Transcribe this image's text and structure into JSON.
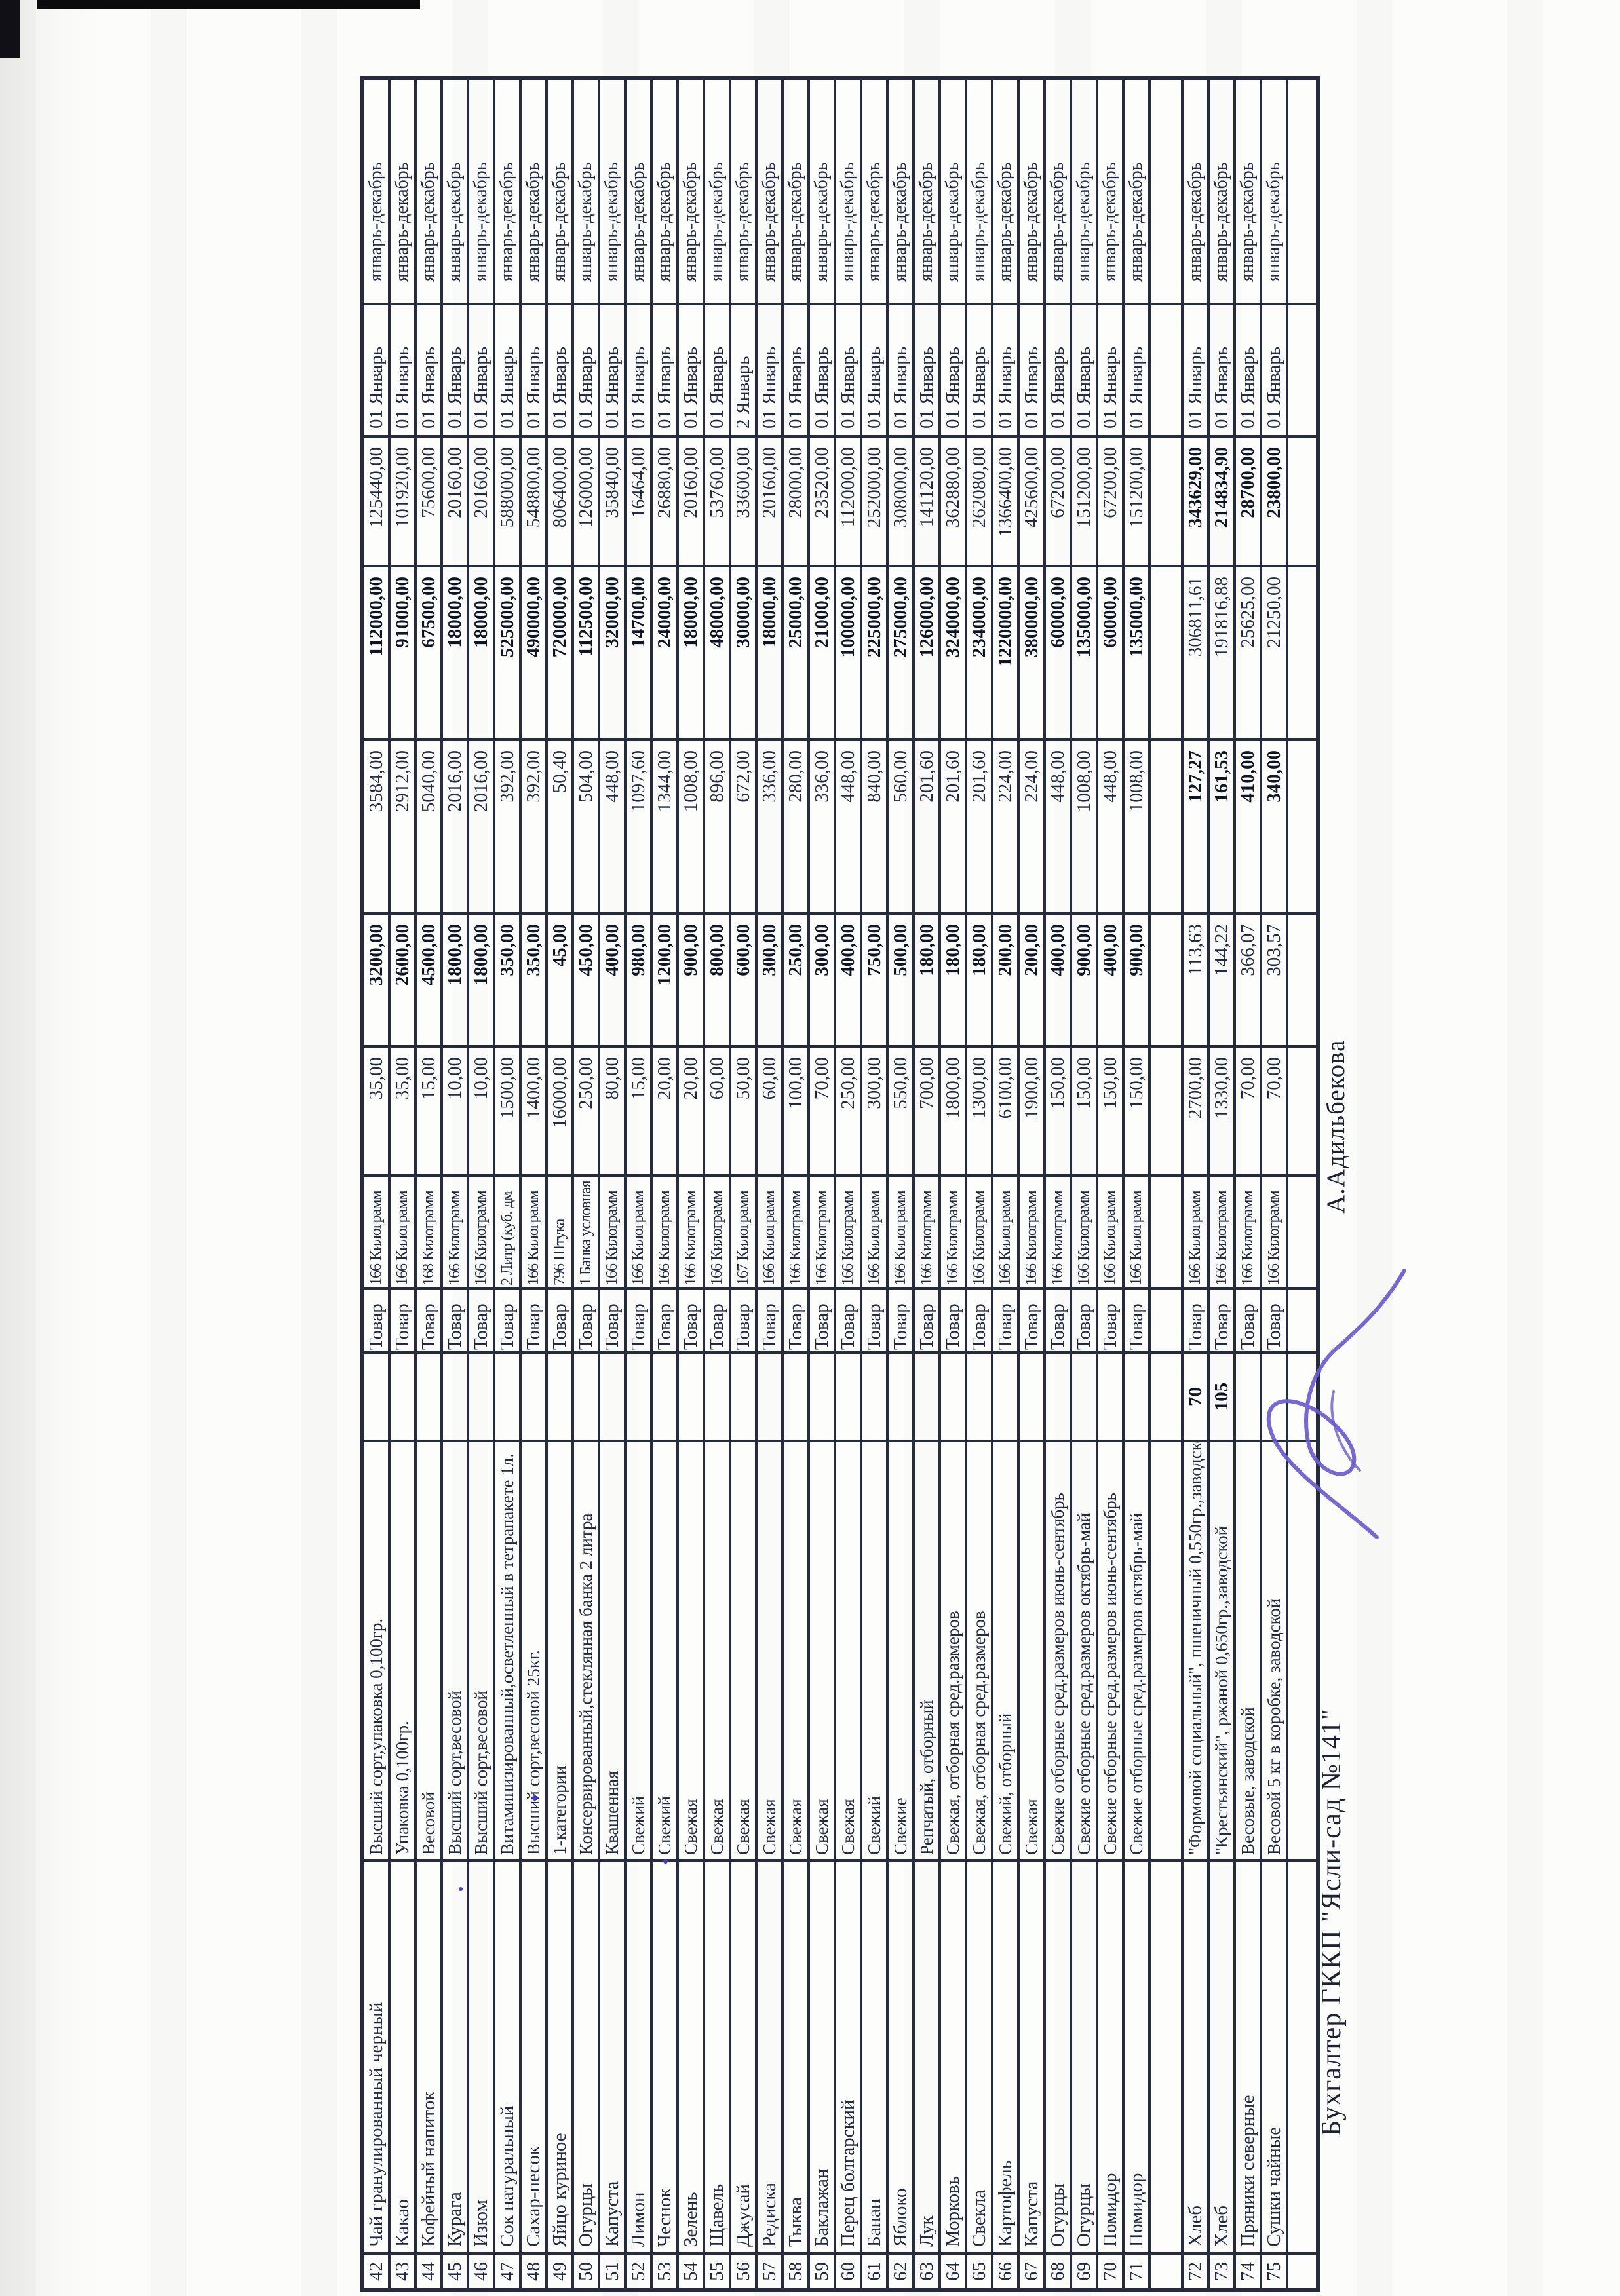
{
  "footer": {
    "role": "Бухгалтер ГККП \"Ясли-сад №141\"",
    "name": "А.Адильбекова"
  },
  "colors": {
    "grid_ink": "#262c3e",
    "text_ink": "#222a46",
    "bold_ink": "#0e1526",
    "signature_ink": "#6a5bcf"
  },
  "icons": {
    "signature": "handwritten-signature-icon"
  },
  "rows": [
    {
      "num": "42",
      "name": "Чай гранулированный черный",
      "desc": "Высший сорт,упаковка 0,100гр.",
      "extra": "",
      "type": "Товар",
      "unit": "166 Килограмм",
      "price": "35,00",
      "qty": "3200,00",
      "qty2": "3584,00",
      "sum": "112000,00",
      "sum2": "125440,00",
      "date": "01 Январь",
      "period": "январь-декабрь",
      "b": 1
    },
    {
      "num": "43",
      "name": "Какао",
      "desc": "Упаковка 0,100гр.",
      "extra": "",
      "type": "Товар",
      "unit": "166 Килограмм",
      "price": "35,00",
      "qty": "2600,00",
      "qty2": "2912,00",
      "sum": "91000,00",
      "sum2": "101920,00",
      "date": "01 Январь",
      "period": "январь-декабрь",
      "b": 1
    },
    {
      "num": "44",
      "name": "Кофейный напиток",
      "desc": "Весовой",
      "extra": "",
      "type": "Товар",
      "unit": "168 Килограмм",
      "price": "15,00",
      "qty": "4500,00",
      "qty2": "5040,00",
      "sum": "67500,00",
      "sum2": "75600,00",
      "date": "01 Январь",
      "period": "январь-декабрь",
      "b": 1
    },
    {
      "num": "45",
      "name": "Курага",
      "desc": "Высший сорт,весовой",
      "extra": "",
      "type": "Товар",
      "unit": "166 Килограмм",
      "price": "10,00",
      "qty": "1800,00",
      "qty2": "2016,00",
      "sum": "18000,00",
      "sum2": "20160,00",
      "date": "01 Январь",
      "period": "январь-декабрь",
      "b": 1
    },
    {
      "num": "46",
      "name": "Изюм",
      "desc": "Высший сорт,весовой",
      "extra": "",
      "type": "Товар",
      "unit": "166 Килограмм",
      "price": "10,00",
      "qty": "1800,00",
      "qty2": "2016,00",
      "sum": "18000,00",
      "sum2": "20160,00",
      "date": "01 Январь",
      "period": "январь-декабрь",
      "b": 1
    },
    {
      "num": "47",
      "name": "Сок натуральный",
      "desc": "Витаминизированный,осветленный в тетрапакете 1л.",
      "extra": "",
      "type": "Товар",
      "unit": "2 Литр (куб. дм",
      "price": "1500,00",
      "qty": "350,00",
      "qty2": "392,00",
      "sum": "525000,00",
      "sum2": "588000,00",
      "date": "01 Январь",
      "period": "январь-декабрь",
      "b": 1
    },
    {
      "num": "48",
      "name": "Сахар-песок",
      "desc": "Высший сорт,весовой 25кг.",
      "extra": "",
      "type": "Товар",
      "unit": "166 Килограмм",
      "price": "1400,00",
      "qty": "350,00",
      "qty2": "392,00",
      "sum": "490000,00",
      "sum2": "548800,00",
      "date": "01 Январь",
      "period": "январь-декабрь",
      "b": 1
    },
    {
      "num": "49",
      "name": "Яйцо куриное",
      "desc": "1-категории",
      "extra": "",
      "type": "Товар",
      "unit": "796 Штука",
      "price": "16000,00",
      "qty": "45,00",
      "qty2": "50,40",
      "sum": "720000,00",
      "sum2": "806400,00",
      "date": "01 Январь",
      "period": "январь-декабрь",
      "b": 1
    },
    {
      "num": "50",
      "name": "Огурцы",
      "desc": "Консервированный,стеклянная банка 2 литра",
      "extra": "",
      "type": "Товар",
      "unit": "1 Банка условная",
      "price": "250,00",
      "qty": "450,00",
      "qty2": "504,00",
      "sum": "112500,00",
      "sum2": "126000,00",
      "date": "01 Январь",
      "period": "январь-декабрь",
      "b": 1
    },
    {
      "num": "51",
      "name": "Капуста",
      "desc": "Квашенная",
      "extra": "",
      "type": "Товар",
      "unit": "166 Килограмм",
      "price": "80,00",
      "qty": "400,00",
      "qty2": "448,00",
      "sum": "32000,00",
      "sum2": "35840,00",
      "date": "01 Январь",
      "period": "январь-декабрь",
      "b": 1
    },
    {
      "num": "52",
      "name": "Лимон",
      "desc": "Свежий",
      "extra": "",
      "type": "Товар",
      "unit": "166 Килограмм",
      "price": "15,00",
      "qty": "980,00",
      "qty2": "1097,60",
      "sum": "14700,00",
      "sum2": "16464,00",
      "date": "01 Январь",
      "period": "январь-декабрь",
      "b": 1
    },
    {
      "num": "53",
      "name": "Чеснок",
      "desc": "Свежий",
      "extra": "",
      "type": "Товар",
      "unit": "166 Килограмм",
      "price": "20,00",
      "qty": "1200,00",
      "qty2": "1344,00",
      "sum": "24000,00",
      "sum2": "26880,00",
      "date": "01 Январь",
      "period": "январь-декабрь",
      "b": 1
    },
    {
      "num": "54",
      "name": "Зелень",
      "desc": "Свежая",
      "extra": "",
      "type": "Товар",
      "unit": "166 Килограмм",
      "price": "20,00",
      "qty": "900,00",
      "qty2": "1008,00",
      "sum": "18000,00",
      "sum2": "20160,00",
      "date": "01 Январь",
      "period": "январь-декабрь",
      "b": 1
    },
    {
      "num": "55",
      "name": "Щавель",
      "desc": "Свежая",
      "extra": "",
      "type": "Товар",
      "unit": "166 Килограмм",
      "price": "60,00",
      "qty": "800,00",
      "qty2": "896,00",
      "sum": "48000,00",
      "sum2": "53760,00",
      "date": "01 Январь",
      "period": "январь-декабрь",
      "b": 1
    },
    {
      "num": "56",
      "name": "Джусай",
      "desc": "Свежая",
      "extra": "",
      "type": "Товар",
      "unit": "167 Килограмм",
      "price": "50,00",
      "qty": "600,00",
      "qty2": "672,00",
      "sum": "30000,00",
      "sum2": "33600,00",
      "date": "2 Январь",
      "period": "январь-декабрь",
      "b": 1
    },
    {
      "num": "57",
      "name": "Редиска",
      "desc": "Свежая",
      "extra": "",
      "type": "Товар",
      "unit": "166 Килограмм",
      "price": "60,00",
      "qty": "300,00",
      "qty2": "336,00",
      "sum": "18000,00",
      "sum2": "20160,00",
      "date": "01 Январь",
      "period": "январь-декабрь",
      "b": 1
    },
    {
      "num": "58",
      "name": "Тыква",
      "desc": "Свежая",
      "extra": "",
      "type": "Товар",
      "unit": "166 Килограмм",
      "price": "100,00",
      "qty": "250,00",
      "qty2": "280,00",
      "sum": "25000,00",
      "sum2": "28000,00",
      "date": "01 Январь",
      "period": "январь-декабрь",
      "b": 1
    },
    {
      "num": "59",
      "name": "Баклажан",
      "desc": "Свежая",
      "extra": "",
      "type": "Товар",
      "unit": "166 Килограмм",
      "price": "70,00",
      "qty": "300,00",
      "qty2": "336,00",
      "sum": "21000,00",
      "sum2": "23520,00",
      "date": "01 Январь",
      "period": "январь-декабрь",
      "b": 1
    },
    {
      "num": "60",
      "name": "Перец болгарский",
      "desc": "Свежая",
      "extra": "",
      "type": "Товар",
      "unit": "166 Килограмм",
      "price": "250,00",
      "qty": "400,00",
      "qty2": "448,00",
      "sum": "100000,00",
      "sum2": "112000,00",
      "date": "01 Январь",
      "period": "январь-декабрь",
      "b": 1
    },
    {
      "num": "61",
      "name": "Банан",
      "desc": "Свежий",
      "extra": "",
      "type": "Товар",
      "unit": "166 Килограмм",
      "price": "300,00",
      "qty": "750,00",
      "qty2": "840,00",
      "sum": "225000,00",
      "sum2": "252000,00",
      "date": "01 Январь",
      "period": "январь-декабрь",
      "b": 1
    },
    {
      "num": "62",
      "name": "Яблоко",
      "desc": "Свежие",
      "extra": "",
      "type": "Товар",
      "unit": "166 Килограмм",
      "price": "550,00",
      "qty": "500,00",
      "qty2": "560,00",
      "sum": "275000,00",
      "sum2": "308000,00",
      "date": "01 Январь",
      "period": "январь-декабрь",
      "b": 1
    },
    {
      "num": "63",
      "name": "Лук",
      "desc": "Репчатый, отборный",
      "extra": "",
      "type": "Товар",
      "unit": "166 Килограмм",
      "price": "700,00",
      "qty": "180,00",
      "qty2": "201,60",
      "sum": "126000,00",
      "sum2": "141120,00",
      "date": "01 Январь",
      "period": "январь-декабрь",
      "b": 1
    },
    {
      "num": "64",
      "name": "Морковь",
      "desc": "Свежая, отборная сред.размеров",
      "extra": "",
      "type": "Товар",
      "unit": "166 Килограмм",
      "price": "1800,00",
      "qty": "180,00",
      "qty2": "201,60",
      "sum": "324000,00",
      "sum2": "362880,00",
      "date": "01 Январь",
      "period": "январь-декабрь",
      "b": 1
    },
    {
      "num": "65",
      "name": "Свекла",
      "desc": "Свежая, отборная сред.размеров",
      "extra": "",
      "type": "Товар",
      "unit": "166 Килограмм",
      "price": "1300,00",
      "qty": "180,00",
      "qty2": "201,60",
      "sum": "234000,00",
      "sum2": "262080,00",
      "date": "01 Январь",
      "period": "январь-декабрь",
      "b": 1
    },
    {
      "num": "66",
      "name": "Картофель",
      "desc": "Свежий, отборный",
      "extra": "",
      "type": "Товар",
      "unit": "166 Килограмм",
      "price": "6100,00",
      "qty": "200,00",
      "qty2": "224,00",
      "sum": "1220000,00",
      "sum2": "1366400,00",
      "date": "01 Январь",
      "period": "январь-декабрь",
      "b": 1
    },
    {
      "num": "67",
      "name": "Капуста",
      "desc": "Свежая",
      "extra": "",
      "type": "Товар",
      "unit": "166 Килограмм",
      "price": "1900,00",
      "qty": "200,00",
      "qty2": "224,00",
      "sum": "380000,00",
      "sum2": "425600,00",
      "date": "01 Январь",
      "period": "январь-декабрь",
      "b": 1
    },
    {
      "num": "68",
      "name": "Огурцы",
      "desc": "Свежие отборные сред.размеров июнь-сентябрь",
      "extra": "",
      "type": "Товар",
      "unit": "166 Килограмм",
      "price": "150,00",
      "qty": "400,00",
      "qty2": "448,00",
      "sum": "60000,00",
      "sum2": "67200,00",
      "date": "01 Январь",
      "period": "январь-декабрь",
      "b": 1
    },
    {
      "num": "69",
      "name": "Огурцы",
      "desc": "Свежие отборные сред.размеров октябрь-май",
      "extra": "",
      "type": "Товар",
      "unit": "166 Килограмм",
      "price": "150,00",
      "qty": "900,00",
      "qty2": "1008,00",
      "sum": "135000,00",
      "sum2": "151200,00",
      "date": "01 Январь",
      "period": "январь-декабрь",
      "b": 1
    },
    {
      "num": "70",
      "name": "Помидор",
      "desc": "Свежие отборные сред.размеров июнь-сентябрь",
      "extra": "",
      "type": "Товар",
      "unit": "166 Килограмм",
      "price": "150,00",
      "qty": "400,00",
      "qty2": "448,00",
      "sum": "60000,00",
      "sum2": "67200,00",
      "date": "01 Январь",
      "period": "январь-декабрь",
      "b": 1
    },
    {
      "num": "71",
      "name": "Помидор",
      "desc": "Свежие отборные сред.размеров октябрь-май",
      "extra": "",
      "type": "Товар",
      "unit": "166 Килограмм",
      "price": "150,00",
      "qty": "900,00",
      "qty2": "1008,00",
      "sum": "135000,00",
      "sum2": "151200,00",
      "date": "01 Январь",
      "period": "январь-декабрь",
      "b": 1
    },
    {
      "num": "",
      "name": "",
      "desc": "",
      "extra": "",
      "type": "",
      "unit": "",
      "price": "",
      "qty": "",
      "qty2": "",
      "sum": "",
      "sum2": "",
      "date": "",
      "period": "",
      "b": 0,
      "h": 50
    },
    {
      "num": "72",
      "name": "Хлеб",
      "desc": "\"Формовой социальный\", пшеничный 0,550гр.,заводской",
      "extra": "70",
      "type": "Товар",
      "unit": "166 Килограмм",
      "price": "2700,00",
      "qty": "113,63",
      "qty2": "127,27",
      "sum": "306811,61",
      "sum2": "343629,00",
      "date": "01 Январь",
      "period": "январь-декабрь",
      "b": 2
    },
    {
      "num": "73",
      "name": "Хлеб",
      "desc": "\"Крестьянский\", ржаной 0,650гр.,заводской",
      "extra": "105",
      "type": "Товар",
      "unit": "166 Килограмм",
      "price": "1330,00",
      "qty": "144,22",
      "qty2": "161,53",
      "sum": "191816,88",
      "sum2": "214834,90",
      "date": "01 Январь",
      "period": "январь-декабрь",
      "b": 2
    },
    {
      "num": "74",
      "name": "Пряники северные",
      "desc": "Весовые, заводской",
      "extra": "",
      "type": "Товар",
      "unit": "166 Килограмм",
      "price": "70,00",
      "qty": "366,07",
      "qty2": "410,00",
      "sum": "25625,00",
      "sum2": "28700,00",
      "date": "01 Январь",
      "period": "январь-декабрь",
      "b": 2
    },
    {
      "num": "75",
      "name": "Сушки чайные",
      "desc": "Весовой 5 кг в коробке, заводской",
      "extra": "",
      "type": "Товар",
      "unit": "166 Килограмм",
      "price": "70,00",
      "qty": "303,57",
      "qty2": "340,00",
      "sum": "21250,00",
      "sum2": "23800,00",
      "date": "01 Январь",
      "period": "январь-декабрь",
      "b": 2
    },
    {
      "num": "",
      "name": "",
      "desc": "",
      "extra": "",
      "type": "",
      "unit": "",
      "price": "",
      "qty": "",
      "qty2": "",
      "sum": "",
      "sum2": "",
      "date": "",
      "period": "",
      "b": 0,
      "h": 42
    }
  ]
}
